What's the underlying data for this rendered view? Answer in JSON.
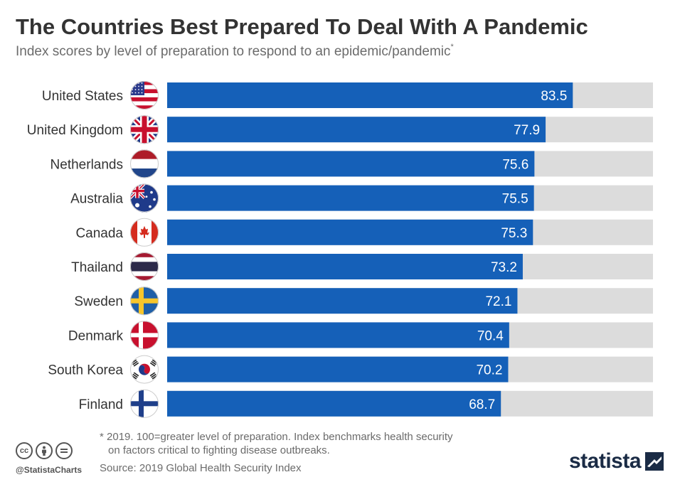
{
  "title": "The Countries Best Prepared To Deal With A Pandemic",
  "subtitle": "Index scores by level of preparation to respond to an epidemic/pandemic",
  "subtitle_marker": "*",
  "footnote_line1": "* 2019. 100=greater level of preparation. Index benchmarks health security",
  "footnote_line2": "on factors critical to fighting disease outbreaks.",
  "source": "Source: 2019 Global Health Security Index",
  "handle": "@StatistaCharts",
  "brand": "statista",
  "cc_icons": [
    "creative-commons-icon",
    "attribution-icon",
    "no-derivatives-icon"
  ],
  "colors": {
    "bar": "#1560b8",
    "track": "#dcdcdc",
    "value_text": "#ffffff",
    "label_text": "#333333",
    "brand": "#1a2b45"
  },
  "chart_data": {
    "type": "bar",
    "orientation": "horizontal",
    "categories": [
      "United States",
      "United Kingdom",
      "Netherlands",
      "Australia",
      "Canada",
      "Thailand",
      "Sweden",
      "Denmark",
      "South Korea",
      "Finland"
    ],
    "values": [
      83.5,
      77.9,
      75.6,
      75.5,
      75.3,
      73.2,
      72.1,
      70.4,
      70.2,
      68.7
    ],
    "value_labels": [
      "83.5",
      "77.9",
      "75.6",
      "75.5",
      "75.3",
      "73.2",
      "72.1",
      "70.4",
      "70.2",
      "68.7"
    ],
    "xlim": [
      0,
      100
    ],
    "flags": [
      "us-flag-icon",
      "uk-flag-icon",
      "netherlands-flag-icon",
      "australia-flag-icon",
      "canada-flag-icon",
      "thailand-flag-icon",
      "sweden-flag-icon",
      "denmark-flag-icon",
      "south-korea-flag-icon",
      "finland-flag-icon"
    ],
    "title": "",
    "xlabel": "",
    "ylabel": "",
    "grid": false,
    "legend": "none"
  }
}
